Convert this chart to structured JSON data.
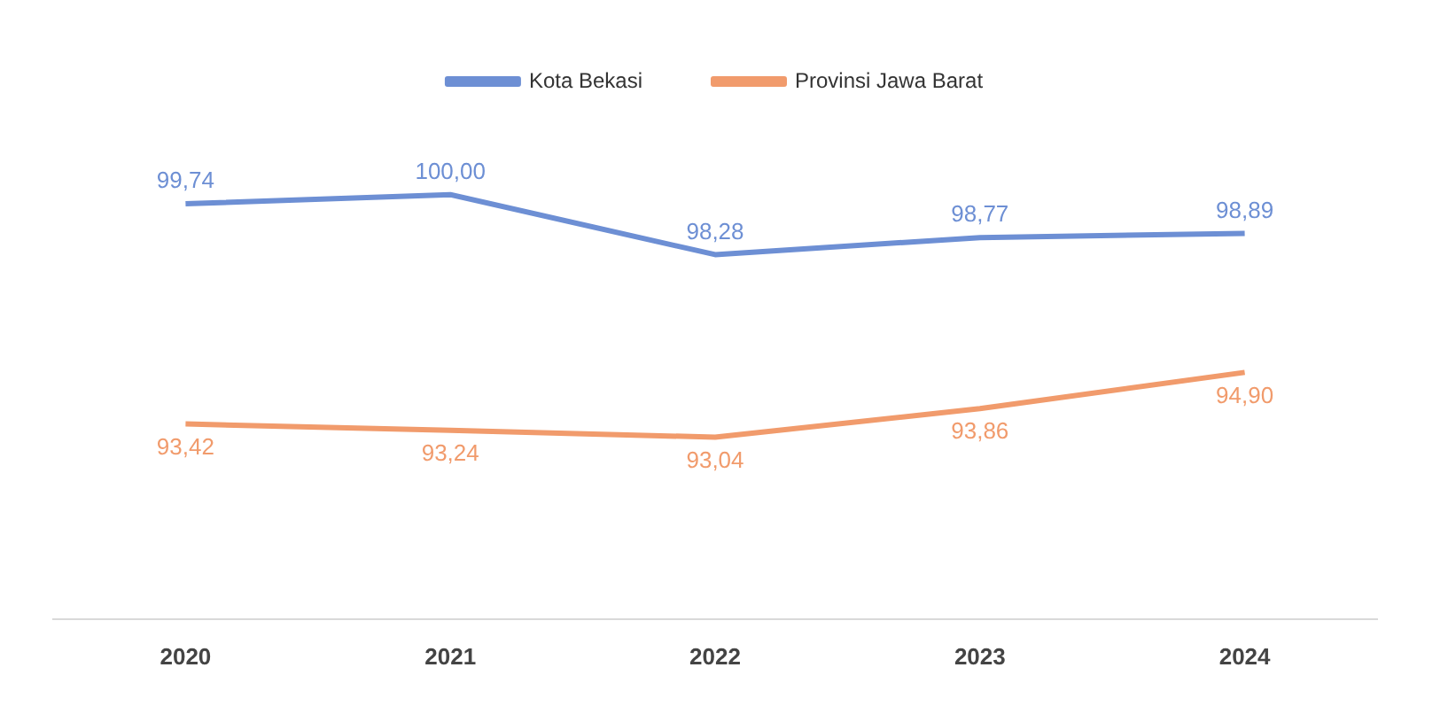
{
  "chart_data": {
    "type": "line",
    "categories": [
      "2020",
      "2021",
      "2022",
      "2023",
      "2024"
    ],
    "series": [
      {
        "name": "Kota Bekasi",
        "color": "#6d8fd4",
        "values": [
          99.74,
          100.0,
          98.28,
          98.77,
          98.89
        ],
        "value_labels": [
          "99,74",
          "100,00",
          "98,28",
          "98,77",
          "98,89"
        ]
      },
      {
        "name": "Provinsi Jawa Barat",
        "color": "#f19b6c",
        "values": [
          93.42,
          93.24,
          93.04,
          93.86,
          94.9
        ],
        "value_labels": [
          "93,42",
          "93,24",
          "93,04",
          "93,86",
          "94,90"
        ]
      }
    ],
    "legend": "top",
    "grid": false,
    "marker": "none",
    "line_style": "solid",
    "tick_labels": "x"
  }
}
